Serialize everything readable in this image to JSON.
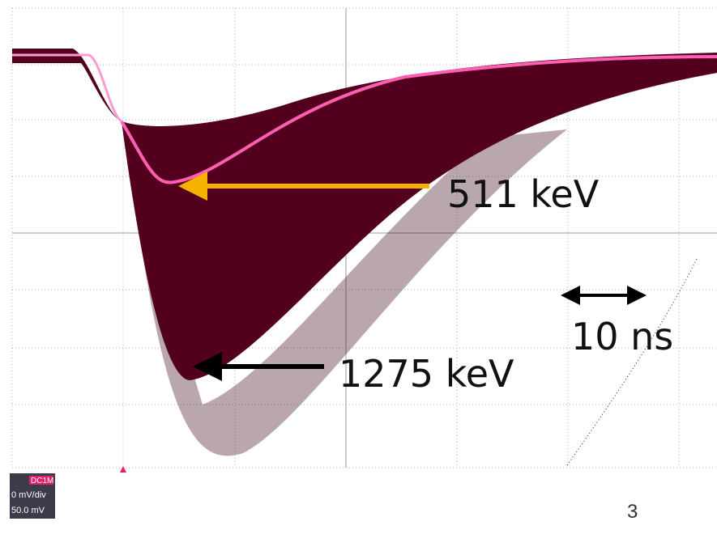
{
  "annotations": {
    "peak_511": "511 keV",
    "peak_1275": "1275 keV",
    "time_scale": "10 ns"
  },
  "scope_badge": {
    "coupling": "DC1M",
    "scale": "0 mV/div",
    "offset": "50.0 mV"
  },
  "slide_number": "3"
}
